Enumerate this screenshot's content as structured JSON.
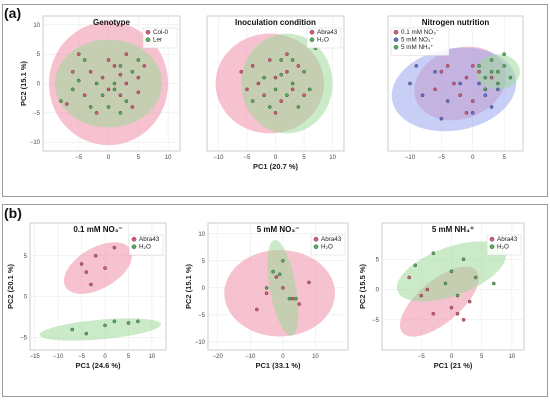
{
  "figure": {
    "section_a_label": "(a)",
    "section_b_label": "(b)"
  },
  "colors": {
    "pink": "#f08fa8",
    "pink_dot": "#e0557a",
    "green": "#9ed89a",
    "green_dot": "#55b25a",
    "blue": "#9aa8f0",
    "blue_dot": "#6070d8",
    "overlap": "#b0a58a"
  },
  "chart_data": [
    {
      "type": "scatter",
      "title": "Genotype",
      "xlabel": "",
      "ylabel": "PC2 (15.1 %)",
      "xlim": [
        -11,
        12
      ],
      "ylim": [
        -11.5,
        11.5
      ],
      "xticks": [
        -5,
        0,
        5,
        10
      ],
      "yticks": [
        -10,
        -5,
        0,
        5,
        10
      ],
      "legend_position": "top-right",
      "series": [
        {
          "name": "Col-0",
          "color": "pink",
          "points": [
            [
              -7,
              -3.5
            ],
            [
              -5,
              5
            ],
            [
              -4,
              -2
            ],
            [
              -3,
              2
            ],
            [
              -1,
              1
            ],
            [
              0,
              -1
            ],
            [
              1,
              3
            ],
            [
              2,
              -2
            ],
            [
              3,
              0
            ],
            [
              4,
              -4
            ],
            [
              5,
              1
            ],
            [
              6,
              3
            ],
            [
              -2,
              -5
            ],
            [
              0,
              4
            ],
            [
              3,
              5
            ],
            [
              -6,
              2
            ],
            [
              2,
              1.5
            ],
            [
              5,
              -1.5
            ]
          ],
          "ellipse": {
            "cx": 0,
            "cy": 0,
            "rx": 10,
            "ry": 10.5,
            "angle": 0
          }
        },
        {
          "name": "Ler",
          "color": "green",
          "points": [
            [
              -8,
              -3
            ],
            [
              -6,
              -1
            ],
            [
              -4,
              4
            ],
            [
              -3,
              -4
            ],
            [
              -1,
              -2
            ],
            [
              1,
              0
            ],
            [
              2,
              3
            ],
            [
              3,
              -3
            ],
            [
              4,
              2
            ],
            [
              5,
              4
            ],
            [
              -2,
              0
            ],
            [
              0,
              -4
            ],
            [
              2,
              -5
            ],
            [
              -5,
              0.5
            ],
            [
              1,
              -1
            ]
          ],
          "ellipse": {
            "cx": 0,
            "cy": 0,
            "rx": 9,
            "ry": 7.5,
            "angle": 0
          }
        }
      ]
    },
    {
      "type": "scatter",
      "title": "Inoculation condition",
      "xlabel": "PC1 (20.7 %)",
      "ylabel": "",
      "xlim": [
        -12,
        12
      ],
      "ylim": [
        -11.5,
        11.5
      ],
      "xticks": [
        -10,
        -5,
        0,
        5,
        10
      ],
      "yticks": [],
      "legend_position": "top-right",
      "series": [
        {
          "name": "Abra43",
          "color": "pink",
          "points": [
            [
              -5,
              -1
            ],
            [
              -4,
              3
            ],
            [
              -2,
              -2
            ],
            [
              -1,
              4
            ],
            [
              0,
              1
            ],
            [
              1,
              -3
            ],
            [
              2,
              2
            ],
            [
              3,
              -1
            ],
            [
              4,
              3
            ],
            [
              -3,
              0
            ],
            [
              0,
              -5
            ],
            [
              2,
              5
            ],
            [
              -6,
              2
            ],
            [
              5,
              -2
            ]
          ],
          "ellipse": {
            "cx": -1,
            "cy": 0,
            "rx": 9.5,
            "ry": 8.5,
            "angle": 0
          }
        },
        {
          "name": "H₂O",
          "color": "green",
          "points": [
            [
              -4,
              -3
            ],
            [
              -2,
              1
            ],
            [
              0,
              -1
            ],
            [
              1,
              4
            ],
            [
              2,
              -2
            ],
            [
              3,
              0
            ],
            [
              4,
              -4
            ],
            [
              5,
              2
            ],
            [
              6,
              -1
            ],
            [
              -1,
              -4
            ],
            [
              3,
              4
            ],
            [
              7,
              6
            ],
            [
              1,
              1.5
            ]
          ],
          "ellipse": {
            "cx": 2,
            "cy": 0,
            "rx": 8,
            "ry": 8.5,
            "angle": 0
          }
        }
      ]
    },
    {
      "type": "scatter",
      "title": "Nitrogen nutrition",
      "xlabel": "",
      "ylabel": "",
      "xlim": [
        -13.5,
        8
      ],
      "ylim": [
        -11.5,
        11.5
      ],
      "xticks": [
        -10,
        -5,
        0,
        5
      ],
      "yticks": [],
      "legend_position": "top-left",
      "series": [
        {
          "name": "0.1 mM NO₃⁻",
          "color": "pink",
          "points": [
            [
              -6,
              -1
            ],
            [
              -4,
              3
            ],
            [
              -2,
              -2
            ],
            [
              -1,
              1
            ],
            [
              0,
              -3
            ],
            [
              1,
              2
            ],
            [
              2,
              -1
            ],
            [
              3,
              1
            ],
            [
              -3,
              0
            ],
            [
              0,
              3
            ],
            [
              -5,
              2
            ],
            [
              -1,
              -5
            ]
          ],
          "ellipse": {
            "cx": -2,
            "cy": 0,
            "rx": 7.5,
            "ry": 6,
            "angle": -20
          }
        },
        {
          "name": "5 mM NO₃⁻",
          "color": "blue",
          "points": [
            [
              -10,
              0
            ],
            [
              -8,
              -2
            ],
            [
              -6,
              2
            ],
            [
              -4,
              -3
            ],
            [
              -2,
              0
            ],
            [
              0,
              -5
            ],
            [
              2,
              -2
            ],
            [
              3,
              -4
            ],
            [
              -9,
              3
            ],
            [
              -5,
              -6
            ],
            [
              1,
              0
            ],
            [
              4,
              -1
            ]
          ],
          "ellipse": {
            "cx": -3,
            "cy": -1,
            "rx": 10,
            "ry": 7,
            "angle": -10
          }
        },
        {
          "name": "5 mM NH₄⁺",
          "color": "green",
          "points": [
            [
              1,
              3
            ],
            [
              2,
              1
            ],
            [
              3,
              4
            ],
            [
              4,
              2
            ],
            [
              5,
              3
            ],
            [
              6,
              1
            ],
            [
              2,
              -1
            ],
            [
              4,
              0
            ],
            [
              5,
              5
            ],
            [
              3,
              2
            ]
          ],
          "ellipse": {
            "cx": 4,
            "cy": 2,
            "rx": 3.5,
            "ry": 3,
            "angle": 0
          }
        }
      ]
    },
    {
      "type": "scatter",
      "title": "0.1 mM NO₃⁻",
      "xlabel": "PC1 (24.6 %)",
      "ylabel": "PC2 (20.1 %)",
      "xlim": [
        -16,
        13
      ],
      "ylim": [
        -6.5,
        9
      ],
      "xticks": [
        -15,
        -10,
        -5,
        0,
        5,
        10
      ],
      "yticks": [
        -5,
        0,
        5
      ],
      "legend_position": "top-right",
      "series": [
        {
          "name": "Abra43",
          "color": "pink",
          "points": [
            [
              -5,
              4
            ],
            [
              -4,
              3
            ],
            [
              -2,
              5
            ],
            [
              0,
              3.5
            ],
            [
              -3,
              1.5
            ],
            [
              2,
              6
            ]
          ],
          "ellipse": {
            "cx": -1.5,
            "cy": 3.5,
            "rx": 8,
            "ry": 2.5,
            "angle": -30
          }
        },
        {
          "name": "H₂O",
          "color": "green",
          "points": [
            [
              -7,
              -4
            ],
            [
              -4,
              -4.5
            ],
            [
              0,
              -3.5
            ],
            [
              2,
              -3
            ],
            [
              5,
              -3.2
            ],
            [
              7,
              -3
            ]
          ],
          "ellipse": {
            "cx": -1,
            "cy": -4,
            "rx": 13,
            "ry": 1.2,
            "angle": -5
          }
        }
      ]
    },
    {
      "type": "scatter",
      "title": "5 mM NO₃⁻",
      "xlabel": "PC1 (33.1 %)",
      "ylabel": "PC2 (15.1 %)",
      "xlim": [
        -23,
        20
      ],
      "ylim": [
        -11.5,
        12
      ],
      "xticks": [
        -20,
        -10,
        0,
        10
      ],
      "yticks": [
        -10,
        -5,
        0,
        5,
        10
      ],
      "legend_position": "top-right",
      "series": [
        {
          "name": "Abra43",
          "color": "pink",
          "points": [
            [
              -8,
              -4
            ],
            [
              -5,
              -1
            ],
            [
              -2,
              2
            ],
            [
              0,
              0
            ],
            [
              3,
              -2
            ],
            [
              5,
              -3
            ],
            [
              8,
              1
            ]
          ],
          "ellipse": {
            "cx": -1,
            "cy": -1,
            "rx": 17,
            "ry": 8,
            "angle": 0
          }
        },
        {
          "name": "H₂O",
          "color": "green",
          "points": [
            [
              -5,
              0
            ],
            [
              -3,
              3
            ],
            [
              -1,
              2.5
            ],
            [
              0,
              5
            ],
            [
              2,
              -2
            ],
            [
              4,
              -2
            ]
          ],
          "ellipse": {
            "cx": 0,
            "cy": 0,
            "rx": 4,
            "ry": 9,
            "angle": -10
          }
        }
      ]
    },
    {
      "type": "scatter",
      "title": "5 mM NH₄⁺",
      "xlabel": "PC1 (21 %)",
      "ylabel": "PC2 (15.5 %)",
      "xlim": [
        -11.5,
        12
      ],
      "ylim": [
        -10,
        11
      ],
      "xticks": [
        -5,
        0,
        5,
        10
      ],
      "yticks": [
        -5,
        0,
        5
      ],
      "legend_position": "top-right",
      "series": [
        {
          "name": "Abra43",
          "color": "pink",
          "points": [
            [
              -7,
              2
            ],
            [
              -5,
              -1
            ],
            [
              -3,
              -4
            ],
            [
              0,
              -3
            ],
            [
              2,
              -5
            ],
            [
              3,
              -2
            ],
            [
              -4,
              0
            ],
            [
              1,
              -4
            ]
          ],
          "ellipse": {
            "cx": -2,
            "cy": -2,
            "rx": 8,
            "ry": 3.5,
            "angle": -40
          }
        },
        {
          "name": "H₂O",
          "color": "green",
          "points": [
            [
              -6,
              4
            ],
            [
              -3,
              6
            ],
            [
              0,
              3
            ],
            [
              2,
              5
            ],
            [
              4,
              2
            ],
            [
              7,
              1
            ],
            [
              1,
              -1
            ],
            [
              -1,
              1
            ]
          ],
          "ellipse": {
            "cx": 0,
            "cy": 3,
            "rx": 9.5,
            "ry": 4,
            "angle": -20
          }
        }
      ]
    }
  ]
}
